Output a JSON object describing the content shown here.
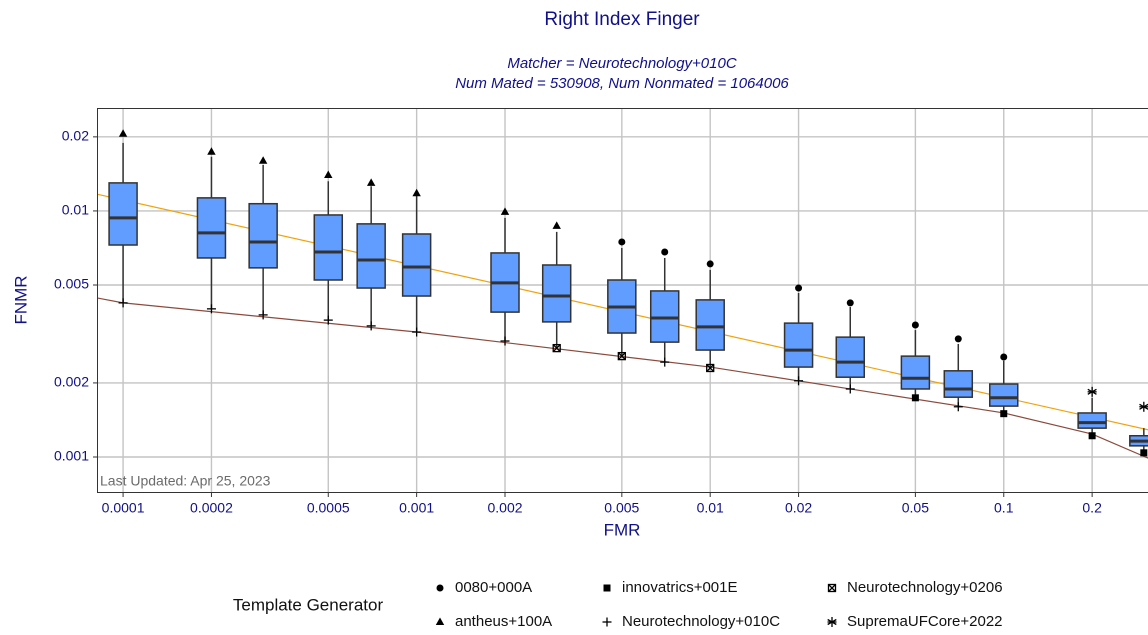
{
  "chart_data": {
    "type": "box",
    "title": "Right Index Finger",
    "subtitle": [
      "Matcher = Neurotechnology+010C",
      "Num Mated = 530908, Num Nonmated = 1064006"
    ],
    "x_label": "FMR",
    "y_label": "FNMR",
    "annotation": "Last Updated: Apr 25, 2023",
    "xscale": "log",
    "yscale": "log",
    "grid": true,
    "xlim": [
      8.15e-05,
      0.31
    ],
    "ylim": [
      0.000714,
      0.0262
    ],
    "xticks": [
      0.0001,
      0.0002,
      0.0005,
      0.001,
      0.002,
      0.005,
      0.01,
      0.02,
      0.05,
      0.1,
      0.2
    ],
    "yticks": [
      0.001,
      0.002,
      0.005,
      0.01,
      0.02
    ],
    "box_color": "#619cff",
    "boxes": [
      {
        "x": 0.0001,
        "min": 0.00423,
        "q1": 0.00727,
        "median": 0.00937,
        "q3": 0.013,
        "max": 0.0189
      },
      {
        "x": 0.0002,
        "min": 0.004,
        "q1": 0.00644,
        "median": 0.00814,
        "q3": 0.0113,
        "max": 0.0166
      },
      {
        "x": 0.0003,
        "min": 0.00378,
        "q1": 0.00587,
        "median": 0.00748,
        "q3": 0.0107,
        "max": 0.0154
      },
      {
        "x": 0.0005,
        "min": 0.0036,
        "q1": 0.00524,
        "median": 0.00681,
        "q3": 0.00963,
        "max": 0.0132
      },
      {
        "x": 0.0007,
        "min": 0.00341,
        "q1": 0.00486,
        "median": 0.00632,
        "q3": 0.00886,
        "max": 0.0126
      },
      {
        "x": 0.001,
        "min": 0.00322,
        "q1": 0.00451,
        "median": 0.00592,
        "q3": 0.00806,
        "max": 0.0115
      },
      {
        "x": 0.002,
        "min": 0.00296,
        "q1": 0.00388,
        "median": 0.0051,
        "q3": 0.00675,
        "max": 0.00937
      },
      {
        "x": 0.003,
        "min": 0.00277,
        "q1": 0.00354,
        "median": 0.00451,
        "q3": 0.00603,
        "max": 0.00822
      },
      {
        "x": 0.005,
        "min": 0.00257,
        "q1": 0.00319,
        "median": 0.00407,
        "q3": 0.00524,
        "max": 0.00707
      },
      {
        "x": 0.007,
        "min": 0.00243,
        "q1": 0.00293,
        "median": 0.00367,
        "q3": 0.00473,
        "max": 0.00644
      },
      {
        "x": 0.01,
        "min": 0.0023,
        "q1": 0.00272,
        "median": 0.00338,
        "q3": 0.00435,
        "max": 0.00576
      },
      {
        "x": 0.02,
        "min": 0.00204,
        "q1": 0.00232,
        "median": 0.00272,
        "q3": 0.0035,
        "max": 0.00464
      },
      {
        "x": 0.03,
        "min": 0.00189,
        "q1": 0.00211,
        "median": 0.00243,
        "q3": 0.00307,
        "max": 0.00407
      },
      {
        "x": 0.05,
        "min": 0.00174,
        "q1": 0.00189,
        "median": 0.00209,
        "q3": 0.00257,
        "max": 0.00328
      },
      {
        "x": 0.07,
        "min": 0.0016,
        "q1": 0.00175,
        "median": 0.00189,
        "q3": 0.00224,
        "max": 0.00288
      },
      {
        "x": 0.1,
        "min": 0.0015,
        "q1": 0.00161,
        "median": 0.00174,
        "q3": 0.00198,
        "max": 0.00246
      },
      {
        "x": 0.2,
        "min": 0.00122,
        "q1": 0.00131,
        "median": 0.00138,
        "q3": 0.00151,
        "max": 0.00174
      },
      {
        "x": 0.3,
        "min": 0.00104,
        "q1": 0.00111,
        "median": 0.00116,
        "q3": 0.00122,
        "max": 0.00131
      }
    ],
    "lines": [
      {
        "color": "#f0a30a",
        "x": [
          8.15e-05,
          0.31
        ],
        "values": [
          0.0117,
          0.00129
        ]
      },
      {
        "color": "#8b4a3c",
        "x": [
          8.15e-05,
          0.0001,
          0.001,
          0.01,
          0.1,
          0.2,
          0.31
        ],
        "values": [
          0.00443,
          0.00423,
          0.00322,
          0.00232,
          0.00151,
          0.00124,
          0.00099
        ]
      }
    ],
    "legend_title": "Template Generator",
    "series": [
      {
        "name": "0080+000A",
        "shape": "circle",
        "color": "#000000",
        "x": [
          0.005,
          0.007,
          0.01,
          0.02,
          0.03,
          0.05,
          0.07,
          0.1
        ],
        "values": [
          0.00748,
          0.00681,
          0.00609,
          0.00486,
          0.00423,
          0.00344,
          0.00302,
          0.00255
        ]
      },
      {
        "name": "antheus+100A",
        "shape": "triangle",
        "color": "#000000",
        "x": [
          0.0001,
          0.0002,
          0.0003,
          0.0005,
          0.0007,
          0.001,
          0.002,
          0.003
        ],
        "values": [
          0.0206,
          0.0174,
          0.016,
          0.014,
          0.013,
          0.0118,
          0.00991,
          0.00869
        ]
      },
      {
        "name": "innovatrics+001E",
        "shape": "square",
        "color": "#000000",
        "x": [
          0.05,
          0.1,
          0.2,
          0.3
        ],
        "values": [
          0.00174,
          0.0015,
          0.00122,
          0.00104
        ]
      },
      {
        "name": "Neurotechnology+010C",
        "shape": "plus",
        "color": "#000000",
        "x": [
          0.0001,
          0.0002,
          0.0003,
          0.0005,
          0.0007,
          0.001,
          0.002,
          0.007,
          0.02,
          0.03,
          0.07
        ],
        "values": [
          0.00423,
          0.004,
          0.00378,
          0.0036,
          0.00341,
          0.00322,
          0.00296,
          0.00243,
          0.00204,
          0.00189,
          0.0016
        ]
      },
      {
        "name": "Neurotechnology+0206",
        "shape": "boxx",
        "color": "#000000",
        "x": [
          0.003,
          0.005,
          0.01
        ],
        "values": [
          0.00277,
          0.00257,
          0.0023
        ]
      },
      {
        "name": "SupremaUFCore+2022",
        "shape": "asterisk",
        "color": "#000000",
        "x": [
          0.2,
          0.3
        ],
        "values": [
          0.00184,
          0.0016
        ]
      }
    ]
  }
}
